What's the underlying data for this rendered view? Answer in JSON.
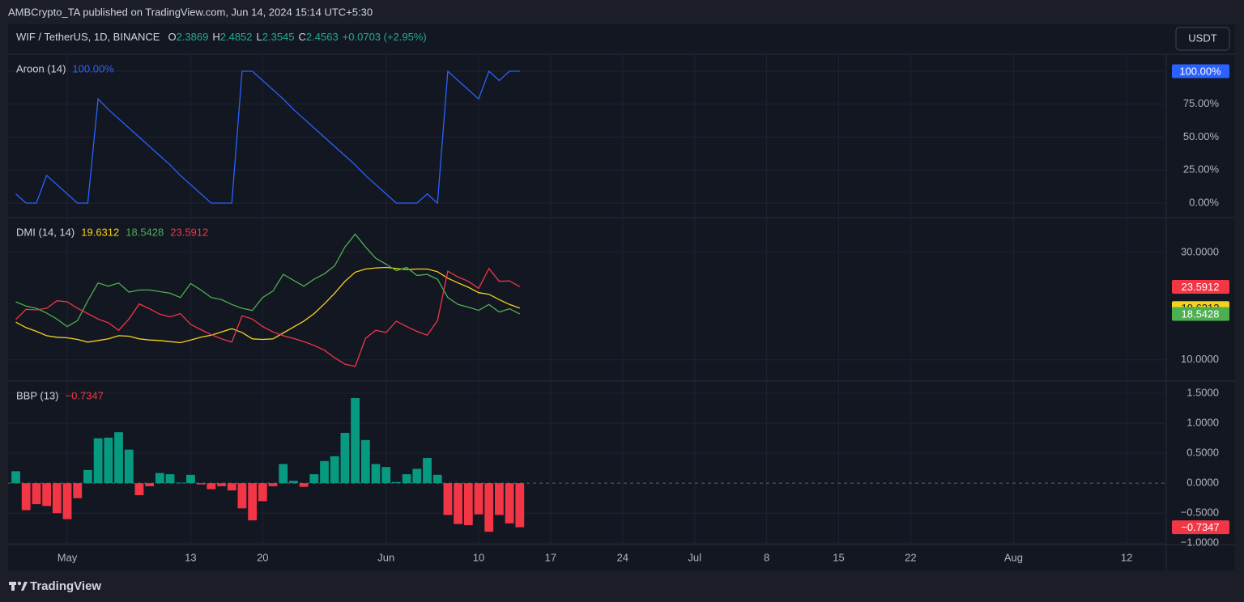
{
  "header": "AMBCrypto_TA published on TradingView.com, Jun 14, 2024 15:14 UTC+5:30",
  "symbol": {
    "name": "WIF / TetherUS, 1D, BINANCE",
    "ohlc": [
      {
        "key": "O",
        "value": "2.3869"
      },
      {
        "key": "H",
        "value": "2.4852"
      },
      {
        "key": "L",
        "value": "2.3545"
      },
      {
        "key": "C",
        "value": "2.4563"
      }
    ],
    "change": "+0.0703 (+2.95%)"
  },
  "currency": "USDT",
  "footer": "TradingView",
  "x_axis": {
    "xlim": [
      -0.75,
      111.85
    ],
    "xticks": [
      {
        "value": 5,
        "label": "May"
      },
      {
        "value": 17,
        "label": "13"
      },
      {
        "value": 24,
        "label": "20"
      },
      {
        "value": 36,
        "label": "Jun"
      },
      {
        "value": 45,
        "label": "10"
      },
      {
        "value": 52,
        "label": "17"
      },
      {
        "value": 59,
        "label": "24"
      },
      {
        "value": 66,
        "label": "Jul"
      },
      {
        "value": 73,
        "label": "8"
      },
      {
        "value": 80,
        "label": "15"
      },
      {
        "value": 87,
        "label": "22"
      },
      {
        "value": 97,
        "label": "Aug"
      },
      {
        "value": 108,
        "label": "12"
      }
    ],
    "grid": true
  },
  "chart_data": [
    {
      "type": "line",
      "title": "Aroon (14)",
      "last_label": "100.00%",
      "ylim": [
        -10.4,
        112.3
      ],
      "grid": true,
      "yticks": [
        {
          "value": 0,
          "label": "0.00%"
        },
        {
          "value": 25,
          "label": "25.00%"
        },
        {
          "value": 50,
          "label": "50.00%"
        },
        {
          "value": 75,
          "label": "75.00%"
        },
        {
          "value": 100,
          "label": "100.00%"
        }
      ],
      "series": [
        {
          "color": "#2962ff",
          "values": [
            7,
            0,
            0,
            21,
            14,
            7,
            0,
            0,
            79,
            71,
            64,
            57,
            50,
            43,
            36,
            29,
            21,
            14,
            7,
            0,
            0,
            0,
            100,
            100,
            93,
            86,
            79,
            71,
            64,
            57,
            50,
            43,
            36,
            29,
            21,
            14,
            7,
            0,
            0,
            0,
            7,
            0,
            100,
            93,
            86,
            79,
            100,
            93,
            100,
            100
          ]
        }
      ]
    },
    {
      "type": "line",
      "title": "DMI (14, 14)",
      "ylim": [
        6.2,
        36.3
      ],
      "grid": true,
      "yticks": [
        {
          "value": 10,
          "label": "10.0000"
        },
        {
          "value": 30,
          "label": "30.0000"
        }
      ],
      "series": [
        {
          "color": "#f7d21a",
          "values": [
            17.0,
            16.0,
            15.3,
            14.5,
            14.2,
            14.1,
            13.8,
            13.3,
            13.6,
            13.9,
            14.5,
            14.4,
            13.9,
            13.7,
            13.6,
            13.4,
            13.2,
            13.7,
            14.2,
            14.6,
            15.2,
            15.8,
            15.1,
            13.9,
            13.8,
            13.9,
            15.0,
            16.1,
            17.2,
            18.6,
            20.4,
            22.4,
            24.6,
            26.3,
            26.9,
            27.1,
            27.2,
            27.0,
            26.8,
            26.9,
            26.9,
            26.4,
            25.2,
            24.3,
            23.5,
            22.5,
            22.2,
            21.2,
            20.3,
            19.6312
          ]
        },
        {
          "color": "#4caf50",
          "values": [
            20.8,
            20.0,
            19.6,
            18.7,
            17.6,
            16.2,
            17.3,
            21.0,
            24.3,
            23.7,
            24.3,
            22.6,
            23.0,
            23.0,
            22.7,
            22.4,
            21.6,
            24.2,
            23.0,
            21.6,
            21.2,
            20.3,
            19.6,
            19.2,
            21.6,
            22.8,
            25.9,
            24.8,
            23.7,
            25.0,
            26.0,
            27.5,
            31.0,
            33.4,
            31.0,
            28.9,
            27.8,
            26.6,
            27.2,
            25.7,
            25.9,
            25.0,
            21.6,
            20.3,
            19.8,
            19.2,
            20.3,
            18.9,
            19.5,
            18.5428
          ]
        },
        {
          "color": "#f23645",
          "values": [
            17.5,
            19.4,
            19.3,
            19.6,
            21.0,
            20.8,
            19.6,
            18.6,
            17.6,
            16.9,
            15.5,
            17.6,
            20.4,
            19.5,
            18.5,
            18.0,
            18.6,
            16.6,
            15.6,
            14.7,
            13.9,
            13.3,
            18.2,
            17.6,
            16.2,
            15.2,
            14.5,
            14.0,
            13.4,
            12.7,
            11.8,
            10.4,
            9.2,
            8.8,
            14.0,
            15.5,
            15.1,
            17.2,
            16.2,
            15.3,
            14.6,
            17.3,
            26.5,
            25.4,
            24.6,
            23.3,
            27.0,
            24.6,
            24.7,
            23.5912
          ]
        }
      ]
    },
    {
      "type": "bar",
      "title": "BBP (13)",
      "last_label": "−0.7347",
      "ylim": [
        -1.01,
        1.69
      ],
      "grid": true,
      "zero_line": "dashed",
      "yticks": [
        {
          "value": -1,
          "label": "−1.0000"
        },
        {
          "value": -0.5,
          "label": "−0.5000"
        },
        {
          "value": 0,
          "label": "0.0000"
        },
        {
          "value": 0.5,
          "label": "0.5000"
        },
        {
          "value": 1,
          "label": "1.0000"
        },
        {
          "value": 1.5,
          "label": "1.5000"
        }
      ],
      "series": [
        {
          "positive_color": "#089981",
          "negative_color": "#f23645",
          "values": [
            0.2,
            -0.45,
            -0.35,
            -0.38,
            -0.5,
            -0.6,
            -0.25,
            0.22,
            0.75,
            0.76,
            0.85,
            0.56,
            -0.2,
            -0.05,
            0.17,
            0.15,
            0.01,
            0.14,
            -0.02,
            -0.1,
            -0.05,
            -0.12,
            -0.42,
            -0.62,
            -0.3,
            -0.05,
            0.32,
            0.04,
            -0.06,
            0.15,
            0.37,
            0.45,
            0.84,
            1.42,
            0.72,
            0.32,
            0.27,
            0.02,
            0.15,
            0.24,
            0.42,
            0.14,
            -0.53,
            -0.68,
            -0.7,
            -0.52,
            -0.81,
            -0.53,
            -0.67,
            -0.7347
          ]
        }
      ]
    }
  ]
}
